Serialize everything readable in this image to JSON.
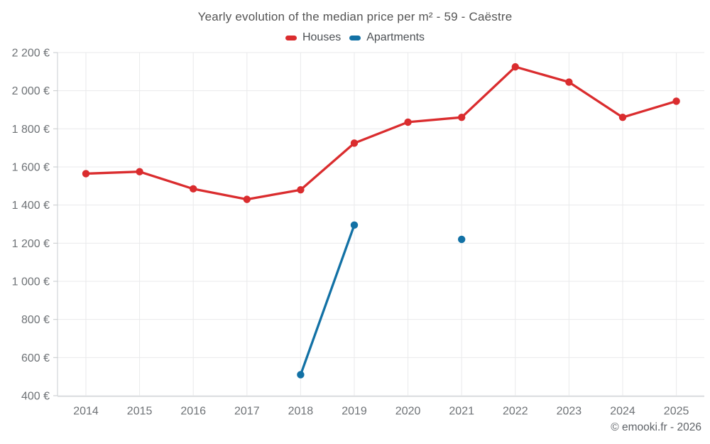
{
  "title": "Yearly evolution of the median price per m² - 59 - Caëstre",
  "footer": "© emooki.fr - 2026",
  "chart_data": {
    "type": "line",
    "title": "Yearly evolution of the median price per m² - 59 - Caëstre",
    "categories": [
      "2014",
      "2015",
      "2016",
      "2017",
      "2018",
      "2019",
      "2020",
      "2021",
      "2022",
      "2023",
      "2024",
      "2025"
    ],
    "series": [
      {
        "name": "Houses",
        "color": "#da2c2e",
        "values": [
          1565,
          1575,
          1485,
          1430,
          1480,
          1725,
          1835,
          1860,
          2125,
          2045,
          1860,
          1945
        ]
      },
      {
        "name": "Apartments",
        "color": "#1271a5",
        "values": [
          null,
          null,
          null,
          null,
          510,
          1295,
          null,
          1220,
          null,
          null,
          null,
          null
        ]
      }
    ],
    "ylim": [
      400,
      2200
    ],
    "ytick_step": 200,
    "yticks": [
      "400 €",
      "600 €",
      "800 €",
      "1 000 €",
      "1 200 €",
      "1 400 €",
      "1 600 €",
      "1 800 €",
      "2 000 €",
      "2 200 €"
    ],
    "grid": true,
    "legend_position": "top",
    "grid_color": "#e9eaeb",
    "axis_color": "#c9cdd0",
    "tick_color": "#c6cacc"
  }
}
